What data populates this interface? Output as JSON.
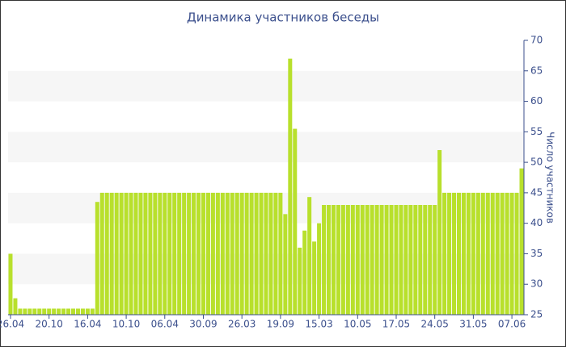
{
  "chart_data": {
    "type": "bar",
    "title": "Динамика участников беседы",
    "y_label": "Число участников",
    "categories": [
      "26.04",
      null,
      null,
      null,
      null,
      null,
      null,
      null,
      "20.10",
      null,
      null,
      null,
      null,
      null,
      null,
      null,
      "16.04",
      null,
      null,
      null,
      null,
      null,
      null,
      null,
      "10.10",
      null,
      null,
      null,
      null,
      null,
      null,
      null,
      "06.04",
      null,
      null,
      null,
      null,
      null,
      null,
      null,
      "30.09",
      null,
      null,
      null,
      null,
      null,
      null,
      null,
      "26.03",
      null,
      null,
      null,
      null,
      null,
      null,
      null,
      "19.09",
      null,
      null,
      null,
      null,
      null,
      null,
      null,
      "15.03",
      null,
      null,
      null,
      null,
      null,
      null,
      null,
      "10.05",
      null,
      null,
      null,
      null,
      null,
      null,
      null,
      "17.05",
      null,
      null,
      null,
      null,
      null,
      null,
      null,
      "24.05",
      null,
      null,
      null,
      null,
      null,
      null,
      null,
      "31.05",
      null,
      null,
      null,
      null,
      null,
      null,
      null,
      "07.06",
      null,
      null
    ],
    "values": [
      35,
      27.7,
      26,
      26,
      26,
      26,
      26,
      26,
      26,
      26,
      26,
      26,
      26,
      26,
      26,
      26,
      26,
      26,
      43.5,
      45,
      45,
      45,
      45,
      45,
      45,
      45,
      45,
      45,
      45,
      45,
      45,
      45,
      45,
      45,
      45,
      45,
      45,
      45,
      45,
      45,
      45,
      45,
      45,
      45,
      45,
      45,
      45,
      45,
      45,
      45,
      45,
      45,
      45,
      45,
      45,
      45,
      45,
      41.5,
      67,
      55.5,
      36,
      38.8,
      44.3,
      37,
      40,
      43,
      43,
      43,
      43,
      43,
      43,
      43,
      43,
      43,
      43,
      43,
      43,
      43,
      43,
      43,
      43,
      43,
      43,
      43,
      43,
      43,
      43,
      43,
      43,
      52,
      45,
      45,
      45,
      45,
      45,
      45,
      45,
      45,
      45,
      45,
      45,
      45,
      45,
      45,
      45,
      45,
      49
    ],
    "color": "#b8e02c",
    "ylim": [
      25,
      70
    ],
    "yticks": [
      25,
      30,
      35,
      40,
      45,
      50,
      55,
      60,
      65,
      70
    ],
    "grid": "bands",
    "y_axis_side": "right"
  }
}
